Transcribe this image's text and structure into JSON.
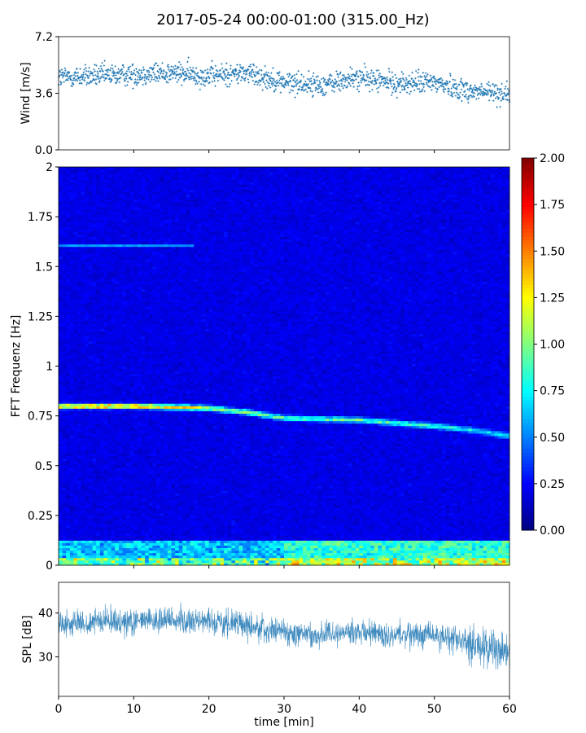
{
  "title": "2017-05-24 00:00-01:00 (315.00_Hz)",
  "chart_data": [
    {
      "name": "wind-scatter",
      "type": "scatter",
      "ylabel": "Wind [m/s]",
      "xlabel": "",
      "xlim": [
        0,
        60
      ],
      "ylim": [
        0.0,
        7.2
      ],
      "yticks": [
        "0.0",
        "3.6",
        "7.2"
      ],
      "ytick_values": [
        0.0,
        3.6,
        7.2
      ],
      "color": "#1f77b4",
      "trend": {
        "x": [
          0,
          5,
          10,
          15,
          20,
          25,
          30,
          35,
          40,
          45,
          50,
          55,
          60
        ],
        "y": [
          4.6,
          4.7,
          4.8,
          4.9,
          4.7,
          4.9,
          4.3,
          4.1,
          4.6,
          4.2,
          4.3,
          3.7,
          3.6
        ]
      },
      "spread": 0.7
    },
    {
      "name": "fft-spectrogram",
      "type": "heatmap",
      "ylabel": "FFT Frequenz [Hz]",
      "xlabel": "",
      "xlim": [
        0,
        60
      ],
      "ylim": [
        0,
        2
      ],
      "yticks": [
        "0",
        "0.25",
        "0.5",
        "0.75",
        "1",
        "1.25",
        "1.5",
        "1.75",
        "2"
      ],
      "ytick_values": [
        0,
        0.25,
        0.5,
        0.75,
        1,
        1.25,
        1.5,
        1.75,
        2
      ],
      "colorbar": {
        "min": 0.0,
        "max": 2.0,
        "ticks": [
          "0.00",
          "0.25",
          "0.50",
          "0.75",
          "1.00",
          "1.25",
          "1.50",
          "1.75",
          "2.00"
        ],
        "tick_values": [
          0.0,
          0.25,
          0.5,
          0.75,
          1.0,
          1.25,
          1.5,
          1.75,
          2.0
        ],
        "colormap": "jet"
      },
      "dominant_line": {
        "x": [
          0,
          10,
          20,
          25,
          30,
          40,
          50,
          55,
          60
        ],
        "freq": [
          0.8,
          0.8,
          0.79,
          0.77,
          0.74,
          0.73,
          0.7,
          0.68,
          0.65
        ],
        "intensity": [
          1.6,
          1.6,
          1.1,
          1.0,
          0.9,
          0.9,
          0.8,
          0.7,
          0.6
        ]
      },
      "background_level": 0.2
    },
    {
      "name": "spl-line",
      "type": "line",
      "ylabel": "SPL [dB]",
      "xlabel": "time [min]",
      "xlim": [
        0,
        60
      ],
      "ylim": [
        21,
        47
      ],
      "yticks": [
        "30",
        "40"
      ],
      "ytick_values": [
        30,
        40
      ],
      "xticks": [
        "0",
        "10",
        "20",
        "30",
        "40",
        "50",
        "60"
      ],
      "xtick_values": [
        0,
        10,
        20,
        30,
        40,
        50,
        60
      ],
      "color": "#1f77b4",
      "trend": {
        "x": [
          0,
          5,
          10,
          15,
          20,
          25,
          30,
          35,
          40,
          45,
          50,
          55,
          60
        ],
        "y": [
          37.5,
          38,
          38,
          38.5,
          38,
          37.5,
          35.5,
          35,
          35.5,
          35,
          35,
          33,
          31
        ]
      },
      "spread": 3
    }
  ]
}
